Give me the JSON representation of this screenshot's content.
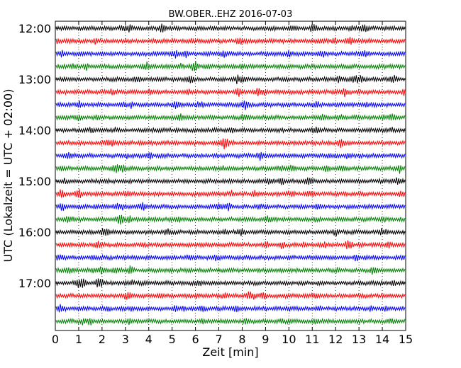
{
  "chart_data": {
    "type": "line",
    "title": "BW.OBER..EHZ 2016-07-03",
    "xlabel": "Zeit  [min]",
    "ylabel": "UTC (Lokalzeit = UTC + 02:00)",
    "xlim": [
      0,
      15
    ],
    "x_ticks": [
      "0",
      "1",
      "2",
      "3",
      "4",
      "5",
      "6",
      "7",
      "8",
      "9",
      "10",
      "11",
      "12",
      "13",
      "14",
      "15"
    ],
    "y_tick_labels": [
      "12:00",
      "13:00",
      "14:00",
      "15:00",
      "16:00",
      "17:00"
    ],
    "grid": {
      "vertical_dotted": true,
      "horizontal": false
    },
    "trace_colors": [
      "#000000",
      "#ff0000",
      "#0000ff",
      "#008000"
    ],
    "traces": [
      {
        "start": "12:00",
        "color": "#000000"
      },
      {
        "start": "12:15",
        "color": "#ff0000"
      },
      {
        "start": "12:30",
        "color": "#0000ff"
      },
      {
        "start": "12:45",
        "color": "#008000"
      },
      {
        "start": "13:00",
        "color": "#000000"
      },
      {
        "start": "13:15",
        "color": "#ff0000"
      },
      {
        "start": "13:30",
        "color": "#0000ff"
      },
      {
        "start": "13:45",
        "color": "#008000"
      },
      {
        "start": "14:00",
        "color": "#000000"
      },
      {
        "start": "14:15",
        "color": "#ff0000"
      },
      {
        "start": "14:30",
        "color": "#0000ff"
      },
      {
        "start": "14:45",
        "color": "#008000"
      },
      {
        "start": "15:00",
        "color": "#000000"
      },
      {
        "start": "15:15",
        "color": "#ff0000"
      },
      {
        "start": "15:30",
        "color": "#0000ff"
      },
      {
        "start": "15:45",
        "color": "#008000"
      },
      {
        "start": "16:00",
        "color": "#000000"
      },
      {
        "start": "16:15",
        "color": "#ff0000"
      },
      {
        "start": "16:30",
        "color": "#0000ff"
      },
      {
        "start": "16:45",
        "color": "#008000"
      },
      {
        "start": "17:00",
        "color": "#000000"
      },
      {
        "start": "17:15",
        "color": "#ff0000"
      },
      {
        "start": "17:30",
        "color": "#0000ff"
      },
      {
        "start": "17:45",
        "color": "#008000"
      }
    ]
  }
}
